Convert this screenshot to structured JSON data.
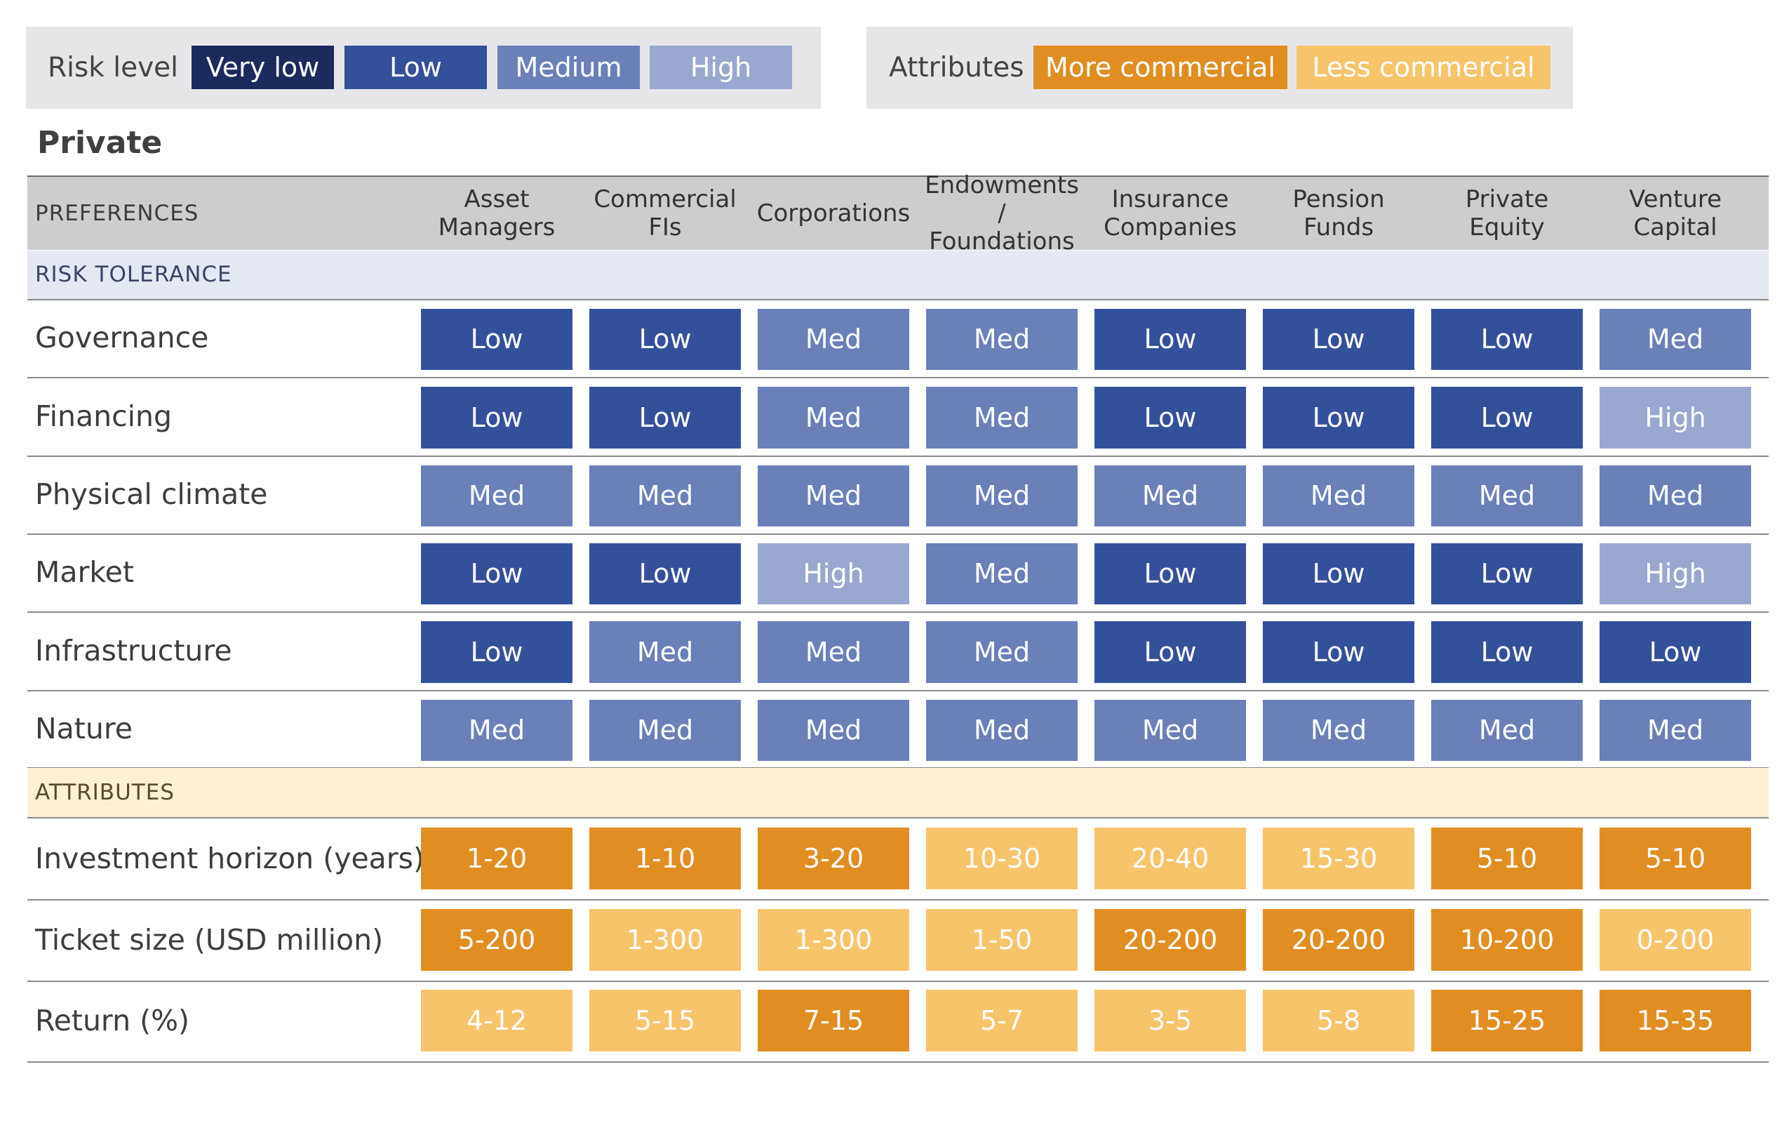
{
  "legend": {
    "risk_title": "Risk level",
    "risk_levels": [
      {
        "label": "Very low",
        "color": "#1d2a5e"
      },
      {
        "label": "Low",
        "color": "#33509a"
      },
      {
        "label": "Medium",
        "color": "#6b7fb9"
      },
      {
        "label": "High",
        "color": "#9aa7d0"
      }
    ],
    "attributes_title": "Attributes",
    "attribute_levels": [
      {
        "label": "More commercial",
        "color": "#e08e22"
      },
      {
        "label": "Less commercial",
        "color": "#f7c46c"
      }
    ]
  },
  "section_title": "Private",
  "header_label": "PREFERENCES",
  "columns": [
    "Asset\nManagers",
    "Commercial\nFIs",
    "Corporations",
    "Endowments /\nFoundations",
    "Insurance\nCompanies",
    "Pension\nFunds",
    "Private\nEquity",
    "Venture\nCapital"
  ],
  "risk_section_label": "RISK TOLERANCE",
  "attributes_section_label": "ATTRIBUTES",
  "colors": {
    "Low": "#33509a",
    "Med": "#6b7fb9",
    "High": "#9aa7d0",
    "more_commercial": "#e08e22",
    "less_commercial": "#f7c46c",
    "header_band": "#cdcdcf",
    "risk_band": "#e4e8f2",
    "attributes_band": "#fdf0d5"
  },
  "chart_data": {
    "type": "table",
    "columns": [
      "Asset Managers",
      "Commercial FIs",
      "Corporations",
      "Endowments / Foundations",
      "Insurance Companies",
      "Pension Funds",
      "Private Equity",
      "Venture Capital"
    ],
    "risk_tolerance": [
      {
        "label": "Governance",
        "values": [
          "Low",
          "Low",
          "Med",
          "Med",
          "Low",
          "Low",
          "Low",
          "Med"
        ]
      },
      {
        "label": "Financing",
        "values": [
          "Low",
          "Low",
          "Med",
          "Med",
          "Low",
          "Low",
          "Low",
          "High"
        ]
      },
      {
        "label": "Physical climate",
        "values": [
          "Med",
          "Med",
          "Med",
          "Med",
          "Med",
          "Med",
          "Med",
          "Med"
        ]
      },
      {
        "label": "Market",
        "values": [
          "Low",
          "Low",
          "High",
          "Med",
          "Low",
          "Low",
          "Low",
          "High"
        ]
      },
      {
        "label": "Infrastructure",
        "values": [
          "Low",
          "Med",
          "Med",
          "Med",
          "Low",
          "Low",
          "Low",
          "Low"
        ]
      },
      {
        "label": "Nature",
        "values": [
          "Med",
          "Med",
          "Med",
          "Med",
          "Med",
          "Med",
          "Med",
          "Med"
        ]
      }
    ],
    "attributes": [
      {
        "label": "Investment horizon (years)",
        "values": [
          "1-20",
          "1-10",
          "3-20",
          "10-30",
          "20-40",
          "15-30",
          "5-10",
          "5-10"
        ],
        "levels": [
          "More commercial",
          "More commercial",
          "More commercial",
          "Less commercial",
          "Less commercial",
          "Less commercial",
          "More commercial",
          "More commercial"
        ]
      },
      {
        "label": "Ticket size (USD million)",
        "values": [
          "5-200",
          "1-300",
          "1-300",
          "1-50",
          "20-200",
          "20-200",
          "10-200",
          "0-200"
        ],
        "levels": [
          "More commercial",
          "Less commercial",
          "Less commercial",
          "Less commercial",
          "More commercial",
          "More commercial",
          "More commercial",
          "Less commercial"
        ]
      },
      {
        "label": "Return (%)",
        "values": [
          "4-12",
          "5-15",
          "7-15",
          "5-7",
          "3-5",
          "5-8",
          "15-25",
          "15-35"
        ],
        "levels": [
          "Less commercial",
          "Less commercial",
          "More commercial",
          "Less commercial",
          "Less commercial",
          "Less commercial",
          "More commercial",
          "More commercial"
        ]
      }
    ]
  }
}
